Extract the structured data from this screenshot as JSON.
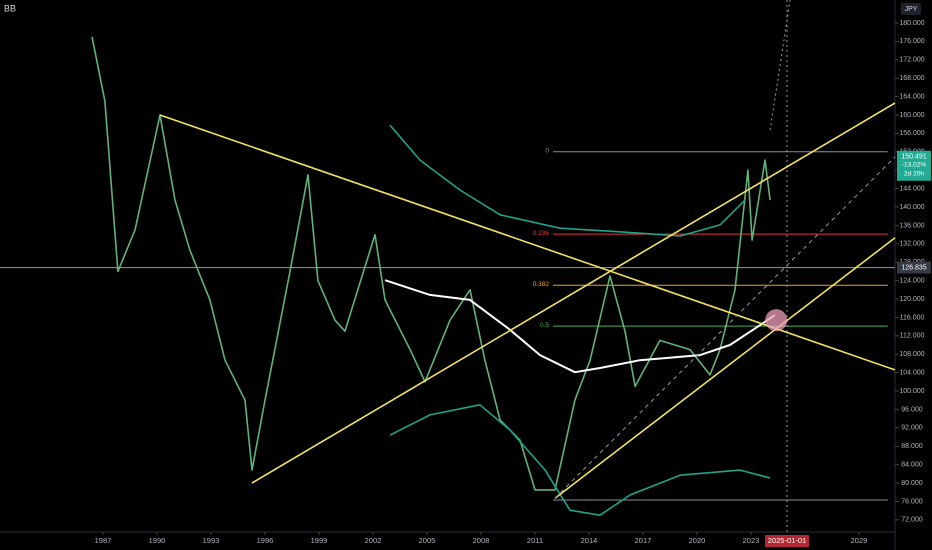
{
  "chart_data": {
    "type": "line",
    "symbol": "BB",
    "currency": "JPY",
    "xlim": [
      1981.28,
      2031.0
    ],
    "ylim": [
      68.7,
      185
    ],
    "xticks": [
      1987,
      1990,
      1993,
      1996,
      1999,
      2002,
      2005,
      2008,
      2011,
      2014,
      2017,
      2020,
      2023,
      2029
    ],
    "yticks": [
      {
        "value": 72,
        "label": "72.000"
      },
      {
        "value": 76,
        "label": "76.000"
      },
      {
        "value": 80,
        "label": "80.000"
      },
      {
        "value": 84,
        "label": "84.000"
      },
      {
        "value": 88,
        "label": "88.000"
      },
      {
        "value": 92,
        "label": "92.000"
      },
      {
        "value": 96,
        "label": "96.000"
      },
      {
        "value": 100,
        "label": "100.000"
      },
      {
        "value": 104,
        "label": "104.000"
      },
      {
        "value": 108,
        "label": "108.000"
      },
      {
        "value": 112,
        "label": "112.000"
      },
      {
        "value": 116,
        "label": "116.000"
      },
      {
        "value": 120,
        "label": "120.000"
      },
      {
        "value": 124,
        "label": "124.000"
      },
      {
        "value": 128,
        "label": "128.000"
      },
      {
        "value": 132,
        "label": "132.000"
      },
      {
        "value": 136,
        "label": "136.000"
      },
      {
        "value": 140,
        "label": "140.000"
      },
      {
        "value": 144,
        "label": "144.000"
      },
      {
        "value": 148,
        "label": "148.000"
      },
      {
        "value": 152,
        "label": "152.000"
      },
      {
        "value": 156,
        "label": "156.000"
      },
      {
        "value": 160,
        "label": "160.000"
      },
      {
        "value": 164,
        "label": "164.000"
      },
      {
        "value": 168,
        "label": "168.000"
      },
      {
        "value": 172,
        "label": "172.000"
      },
      {
        "value": 176,
        "label": "176.000"
      },
      {
        "value": 180,
        "label": "180.000"
      }
    ],
    "series": [
      {
        "color": "#5fb37a",
        "width": 1.6,
        "x": [
          1986.39,
          1987.11,
          1987.83,
          1988.78,
          1990.17,
          1991.0,
          1991.83,
          1992.94,
          1993.78,
          1994.89,
          1995.28,
          1996.0,
          1997.39,
          1998.39,
          1998.94,
          1999.89,
          2000.44,
          2002.11,
          2002.67,
          2004.06,
          2004.89,
          2006.28,
          2007.39,
          2008.22,
          2009.06,
          2010.17,
          2011.0,
          2012.11,
          2013.22,
          2014.06,
          2015.17,
          2016.0,
          2016.56,
          2017.94,
          2019.61,
          2020.72,
          2021.28,
          2022.11,
          2022.83,
          2023.06,
          2023.78,
          2024.06
        ],
        "values": [
          177,
          163,
          126,
          135,
          160,
          141.5,
          130.6,
          119.8,
          106.7,
          98,
          82.8,
          98,
          126,
          147,
          124,
          115.4,
          113,
          134,
          119.8,
          109,
          102,
          115.4,
          122,
          106.7,
          93.7,
          89.3,
          78.5,
          78.5,
          98,
          106.7,
          125,
          113,
          101,
          111,
          109,
          103.5,
          109,
          122,
          148,
          132.8,
          150.2,
          141.5
        ]
      },
      {
        "color": "#ffffff",
        "width": 2,
        "x": [
          2002.67,
          2005.17,
          2007.39,
          2009.61,
          2011.28,
          2013.22,
          2014.61,
          2016.83,
          2020.17,
          2021.83,
          2023.5,
          2024.33
        ],
        "values": [
          124.1,
          120.9,
          119.8,
          113.3,
          107.8,
          104.1,
          105,
          106.7,
          107.8,
          110,
          114.3,
          116.5
        ]
      },
      {
        "color": "#1fa38a",
        "width": 1.6,
        "x": [
          2002.94,
          2004.61,
          2006.83,
          2009.06,
          2012.39,
          2015.72,
          2019.06,
          2021.28,
          2022.67
        ],
        "values": [
          157.8,
          150.2,
          143.7,
          138.3,
          135.4,
          134.6,
          133.7,
          136.1,
          141.5
        ]
      },
      {
        "color": "#1fa38a",
        "width": 1.6,
        "x": [
          2002.94,
          2005.17,
          2007.94,
          2009.61,
          2011.56,
          2012.94,
          2014.61,
          2016.28,
          2019.06,
          2022.39,
          2024.06
        ],
        "values": [
          90.4,
          94.8,
          97,
          91.5,
          82.8,
          74.1,
          73,
          77.4,
          81.7,
          82.8,
          81.1
        ]
      },
      {
        "color": "#f2e35c",
        "width": 1.6,
        "x": [
          1990.17,
          2031.0
        ],
        "values": [
          160,
          104.6
        ]
      },
      {
        "color": "#f2e35c",
        "width": 1.6,
        "x": [
          1995.28,
          2031.0
        ],
        "values": [
          80,
          162.6
        ]
      },
      {
        "color": "#f2e35c",
        "width": 1.6,
        "x": [
          2012.11,
          2031.0
        ],
        "values": [
          76.7,
          133.3
        ]
      },
      {
        "color": "#9a9a9a",
        "width": 1,
        "style": "dashed",
        "x": [
          2012.11,
          2031.0
        ],
        "values": [
          76.7,
          150.9
        ]
      },
      {
        "color": "#9a9a9a",
        "width": 1,
        "style": "dotted",
        "x": [
          2024.06,
          2025.17
        ],
        "values": [
          156.7,
          185
        ]
      }
    ],
    "fib_x": [
      2012.0,
      2030.6
    ],
    "fib_levels": [
      {
        "label": "0",
        "value": 152,
        "color": "#8a8f98"
      },
      {
        "label": "0.236",
        "value": 134.1,
        "color": "#e0393e"
      },
      {
        "label": "0.382",
        "value": 123,
        "color": "#f0a030"
      },
      {
        "label": "0.5",
        "value": 114.1,
        "color": "#4caf50"
      },
      {
        "value": 76.3,
        "color": "#8a8f98"
      }
    ],
    "crosshair_price": 126.835,
    "crosshair_date": {
      "value": 2025,
      "label": "2025-01-01"
    },
    "last_price": {
      "value": 150.491,
      "change": "-13.02%",
      "countdown": "2d 20h"
    },
    "highlight": {
      "x": 2024.4,
      "y": 115.4
    }
  }
}
